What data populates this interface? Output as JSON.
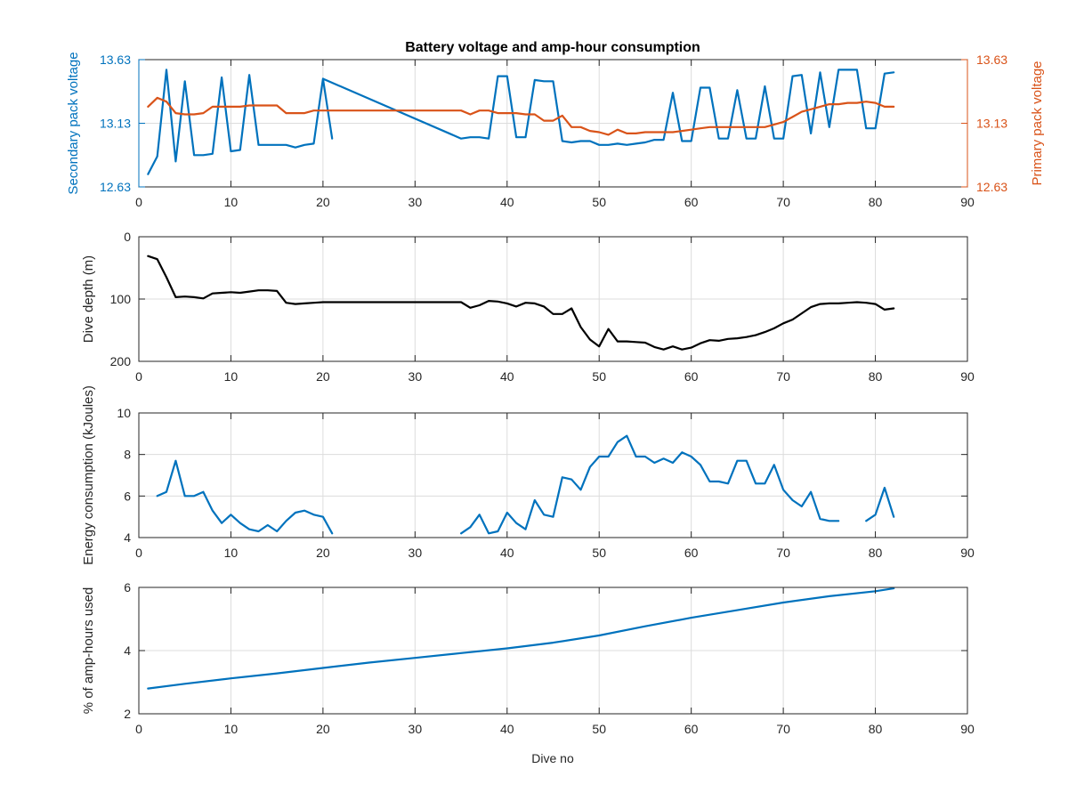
{
  "figure": {
    "title": "Battery voltage and amp-hour consumption",
    "xlabel": "Dive no"
  },
  "colors": {
    "blue": "#0072bd",
    "orange": "#d95319",
    "black": "#000000",
    "grid": "#dcdcdc",
    "axis": "#262626"
  },
  "chart_data": [
    {
      "type": "line",
      "title": "Battery voltage and amp-hour consumption",
      "xlabel": "",
      "ylabel": "Secondary pack voltage",
      "y2label": "Primary pack voltage",
      "xlim": [
        0,
        90
      ],
      "xticks": [
        0,
        10,
        20,
        30,
        40,
        50,
        60,
        70,
        80,
        90
      ],
      "ylim": [
        12.63,
        13.63
      ],
      "yticks": [
        12.63,
        13.13,
        13.63
      ],
      "y2lim": [
        12.63,
        13.63
      ],
      "y2ticks": [
        12.63,
        13.13,
        13.63
      ],
      "grid": true,
      "series": [
        {
          "axis": "left",
          "color": "#0072bd",
          "x": [
            1,
            2,
            3,
            4,
            5,
            6,
            7,
            8,
            9,
            10,
            11,
            12,
            13,
            14,
            15,
            16,
            17,
            18,
            19,
            20,
            21,
            null,
            20,
            35,
            36,
            37,
            38,
            39,
            40,
            41,
            42,
            43,
            44,
            45,
            46,
            47,
            48,
            49,
            50,
            51,
            52,
            53,
            54,
            55,
            56,
            57,
            58,
            59,
            60,
            61,
            62,
            63,
            64,
            65,
            66,
            67,
            68,
            69,
            70,
            71,
            72,
            73,
            74,
            75,
            76,
            77,
            78,
            79,
            80,
            81,
            82
          ],
          "y": [
            12.73,
            12.87,
            13.55,
            12.83,
            13.46,
            12.88,
            12.88,
            12.89,
            13.49,
            12.91,
            12.92,
            13.51,
            12.96,
            12.96,
            12.96,
            12.96,
            12.94,
            12.96,
            12.97,
            13.48,
            13.01,
            null,
            13.48,
            13.01,
            13.02,
            13.02,
            13.01,
            13.5,
            13.5,
            13.02,
            13.02,
            13.47,
            13.46,
            13.46,
            12.99,
            12.98,
            12.99,
            12.99,
            12.96,
            12.96,
            12.97,
            12.96,
            12.97,
            12.98,
            13.0,
            13.0,
            13.37,
            12.99,
            12.99,
            13.41,
            13.41,
            13.01,
            13.01,
            13.39,
            13.01,
            13.01,
            13.42,
            13.01,
            13.01,
            13.5,
            13.51,
            13.05,
            13.53,
            13.1,
            13.55,
            13.55,
            13.55,
            13.09,
            13.09,
            13.52,
            13.53
          ]
        },
        {
          "axis": "right",
          "color": "#d95319",
          "x": [
            1,
            2,
            3,
            4,
            5,
            6,
            7,
            8,
            9,
            10,
            11,
            12,
            13,
            14,
            15,
            16,
            17,
            18,
            19,
            20,
            21,
            35,
            36,
            37,
            38,
            39,
            40,
            41,
            42,
            43,
            44,
            45,
            46,
            47,
            48,
            49,
            50,
            51,
            52,
            53,
            54,
            55,
            56,
            57,
            58,
            59,
            60,
            61,
            62,
            63,
            64,
            65,
            66,
            67,
            68,
            69,
            70,
            71,
            72,
            73,
            74,
            75,
            76,
            77,
            78,
            79,
            80,
            81,
            82
          ],
          "y": [
            13.26,
            13.33,
            13.3,
            13.21,
            13.2,
            13.2,
            13.21,
            13.26,
            13.26,
            13.26,
            13.26,
            13.27,
            13.27,
            13.27,
            13.27,
            13.21,
            13.21,
            13.21,
            13.23,
            13.23,
            13.23,
            13.23,
            13.2,
            13.23,
            13.23,
            13.21,
            13.21,
            13.21,
            13.2,
            13.2,
            13.15,
            13.15,
            13.19,
            13.1,
            13.1,
            13.07,
            13.06,
            13.04,
            13.08,
            13.05,
            13.05,
            13.06,
            13.06,
            13.06,
            13.06,
            13.07,
            13.08,
            13.09,
            13.1,
            13.1,
            13.1,
            13.1,
            13.1,
            13.1,
            13.1,
            13.12,
            13.14,
            13.18,
            13.22,
            13.24,
            13.26,
            13.28,
            13.28,
            13.29,
            13.29,
            13.3,
            13.29,
            13.26,
            13.26
          ]
        }
      ]
    },
    {
      "type": "line",
      "title": "",
      "xlabel": "",
      "ylabel": "Dive depth (m)",
      "xlim": [
        0,
        90
      ],
      "xticks": [
        0,
        10,
        20,
        30,
        40,
        50,
        60,
        70,
        80,
        90
      ],
      "ylim": [
        0,
        200
      ],
      "yticks": [
        0,
        100,
        200
      ],
      "yreverse": true,
      "grid": true,
      "series": [
        {
          "color": "#000000",
          "x": [
            1,
            2,
            3,
            4,
            5,
            6,
            7,
            8,
            9,
            10,
            11,
            12,
            13,
            14,
            15,
            16,
            17,
            18,
            19,
            20,
            21,
            35,
            36,
            37,
            38,
            39,
            40,
            41,
            42,
            43,
            44,
            45,
            46,
            47,
            48,
            49,
            50,
            51,
            52,
            53,
            54,
            55,
            56,
            57,
            58,
            59,
            60,
            61,
            62,
            63,
            64,
            65,
            66,
            67,
            68,
            69,
            70,
            71,
            72,
            73,
            74,
            75,
            76,
            77,
            78,
            79,
            80,
            81,
            82
          ],
          "y": [
            31,
            36,
            65,
            97,
            96,
            97,
            99,
            91,
            90,
            89,
            90,
            88,
            86,
            86,
            87,
            106,
            108,
            107,
            106,
            105,
            105,
            105,
            114,
            110,
            103,
            104,
            107,
            112,
            106,
            107,
            112,
            124,
            124,
            115,
            145,
            165,
            176,
            148,
            168,
            168,
            169,
            170,
            177,
            181,
            176,
            181,
            178,
            171,
            166,
            167,
            164,
            163,
            161,
            158,
            153,
            147,
            139,
            133,
            123,
            113,
            108,
            107,
            107,
            106,
            105,
            106,
            108,
            117,
            115
          ]
        }
      ]
    },
    {
      "type": "line",
      "title": "",
      "xlabel": "",
      "ylabel": "Energy consumption (kJoules)",
      "xlim": [
        0,
        90
      ],
      "xticks": [
        0,
        10,
        20,
        30,
        40,
        50,
        60,
        70,
        80,
        90
      ],
      "ylim": [
        4,
        10
      ],
      "yticks": [
        4,
        6,
        8,
        10
      ],
      "grid": true,
      "series": [
        {
          "color": "#0072bd",
          "x": [
            2,
            3,
            4,
            5,
            6,
            7,
            8,
            9,
            10,
            11,
            12,
            13,
            14,
            15,
            16,
            17,
            18,
            19,
            20,
            21,
            null,
            35,
            36,
            37,
            38,
            39,
            40,
            41,
            42,
            43,
            44,
            45,
            46,
            47,
            48,
            49,
            50,
            51,
            52,
            53,
            54,
            55,
            56,
            57,
            58,
            59,
            60,
            61,
            62,
            63,
            64,
            65,
            66,
            67,
            68,
            69,
            70,
            71,
            72,
            73,
            74,
            75,
            76,
            null,
            79,
            80,
            81,
            82
          ],
          "y": [
            6.0,
            6.2,
            7.7,
            6.0,
            6.0,
            6.2,
            5.3,
            4.7,
            5.1,
            4.7,
            4.4,
            4.3,
            4.6,
            4.3,
            4.8,
            5.2,
            5.3,
            5.1,
            5.0,
            4.2,
            null,
            4.2,
            4.5,
            5.1,
            4.2,
            4.3,
            5.2,
            4.7,
            4.4,
            5.8,
            5.1,
            5.0,
            6.9,
            6.8,
            6.3,
            7.4,
            7.9,
            7.9,
            8.6,
            8.9,
            7.9,
            7.9,
            7.6,
            7.8,
            7.6,
            8.1,
            7.9,
            7.5,
            6.7,
            6.7,
            6.6,
            7.7,
            7.7,
            6.6,
            6.6,
            7.5,
            6.3,
            5.8,
            5.5,
            6.2,
            4.9,
            4.8,
            4.8,
            null,
            4.8,
            5.1,
            6.4,
            5.0
          ]
        }
      ]
    },
    {
      "type": "line",
      "title": "",
      "xlabel": "Dive no",
      "ylabel": "% of amp-hours used",
      "xlim": [
        0,
        90
      ],
      "xticks": [
        0,
        10,
        20,
        30,
        40,
        50,
        60,
        70,
        80,
        90
      ],
      "ylim": [
        2,
        6
      ],
      "yticks": [
        2,
        4,
        6
      ],
      "grid": true,
      "series": [
        {
          "color": "#0072bd",
          "x": [
            1,
            5,
            10,
            15,
            20,
            25,
            30,
            35,
            40,
            45,
            50,
            55,
            60,
            65,
            70,
            75,
            80,
            82
          ],
          "y": [
            2.8,
            2.95,
            3.12,
            3.28,
            3.45,
            3.62,
            3.77,
            3.92,
            4.07,
            4.25,
            4.48,
            4.77,
            5.04,
            5.28,
            5.52,
            5.72,
            5.88,
            5.97
          ]
        }
      ]
    }
  ]
}
